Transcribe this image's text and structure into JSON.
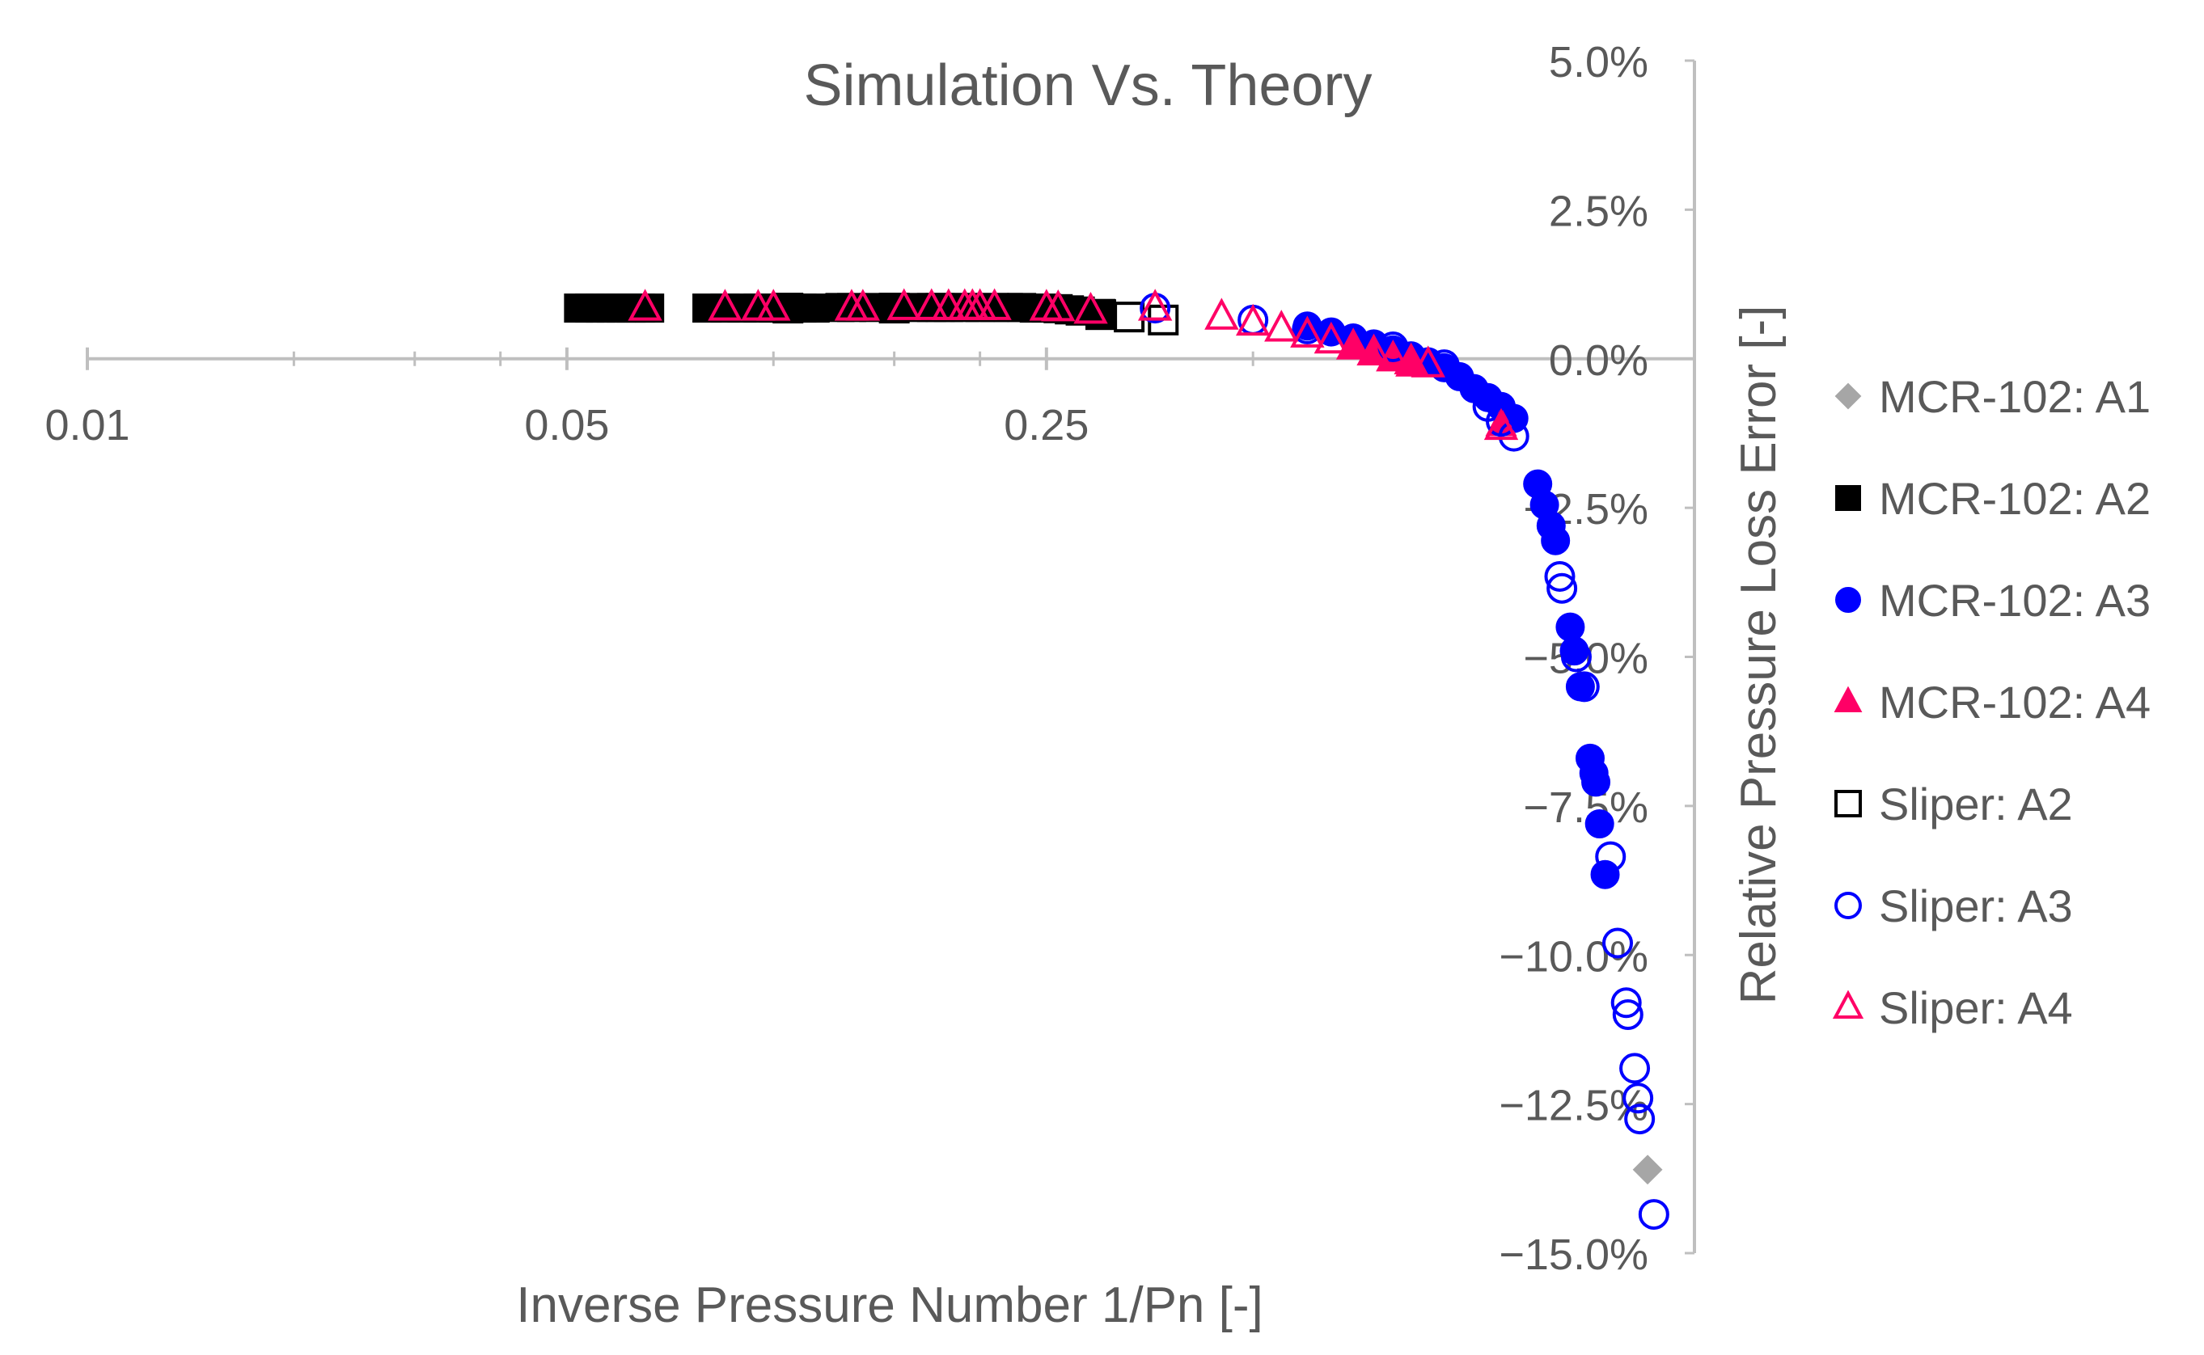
{
  "chart_data": {
    "type": "scatter",
    "title": "Simulation Vs. Theory",
    "xlabel": "Inverse Pressure Number 1/Pn [-]",
    "ylabel": "Relative Pressure Loss Error [-]",
    "xscale": "log",
    "xlim": [
      0.01,
      2.2
    ],
    "ylim": [
      -15.0,
      5.0
    ],
    "x_tick_labels": [
      {
        "value": 0.01,
        "label": "0.01"
      },
      {
        "value": 0.05,
        "label": "0.05"
      },
      {
        "value": 0.25,
        "label": "0.25"
      }
    ],
    "x_minor_ticks": [
      0.02,
      0.03,
      0.04,
      0.1,
      0.15,
      0.2,
      0.5
    ],
    "y_ticks": [
      {
        "value": 5.0,
        "label": "5.0%"
      },
      {
        "value": 2.5,
        "label": "2.5%"
      },
      {
        "value": 0.0,
        "label": "0.0%"
      },
      {
        "value": -2.5,
        "label": "−2.5%"
      },
      {
        "value": -5.0,
        "label": "−5.0%"
      },
      {
        "value": -7.5,
        "label": "−7.5%"
      },
      {
        "value": -10.0,
        "label": "−10.0%"
      },
      {
        "value": -12.5,
        "label": "−12.5%"
      },
      {
        "value": -15.0,
        "label": "−15.0%"
      }
    ],
    "y_axis_position": "right (x = 2.2)",
    "grid": false,
    "legend_position": "right",
    "series": [
      {
        "name": "MCR-102: A1",
        "marker": "diamond-filled",
        "color": "#a6a6a6",
        "points": [
          [
            1.88,
            -13.6
          ]
        ]
      },
      {
        "name": "MCR-102: A2",
        "marker": "square-filled",
        "color": "#000000",
        "points": [
          [
            0.052,
            0.85
          ],
          [
            0.054,
            0.85
          ],
          [
            0.056,
            0.85
          ],
          [
            0.058,
            0.85
          ],
          [
            0.06,
            0.85
          ],
          [
            0.062,
            0.85
          ],
          [
            0.064,
            0.85
          ],
          [
            0.066,
            0.85
          ],
          [
            0.08,
            0.85
          ],
          [
            0.085,
            0.85
          ],
          [
            0.09,
            0.85
          ],
          [
            0.095,
            0.85
          ],
          [
            0.1,
            0.85
          ],
          [
            0.105,
            0.85
          ],
          [
            0.11,
            0.85
          ],
          [
            0.115,
            0.85
          ],
          [
            0.125,
            0.86
          ],
          [
            0.13,
            0.86
          ],
          [
            0.14,
            0.86
          ],
          [
            0.15,
            0.86
          ],
          [
            0.16,
            0.86
          ],
          [
            0.17,
            0.86
          ],
          [
            0.175,
            0.86
          ],
          [
            0.18,
            0.86
          ],
          [
            0.19,
            0.86
          ],
          [
            0.2,
            0.86
          ],
          [
            0.21,
            0.86
          ],
          [
            0.22,
            0.86
          ],
          [
            0.23,
            0.86
          ],
          [
            0.24,
            0.85
          ],
          [
            0.25,
            0.85
          ],
          [
            0.26,
            0.84
          ],
          [
            0.27,
            0.82
          ],
          [
            0.28,
            0.8
          ],
          [
            0.3,
            0.76
          ]
        ]
      },
      {
        "name": "MCR-102: A3",
        "marker": "circle-filled",
        "color": "#0000ff",
        "points": [
          [
            0.6,
            0.55
          ],
          [
            0.65,
            0.45
          ],
          [
            0.7,
            0.35
          ],
          [
            0.75,
            0.25
          ],
          [
            0.8,
            0.15
          ],
          [
            0.85,
            0.05
          ],
          [
            0.9,
            -0.05
          ],
          [
            0.95,
            -0.15
          ],
          [
            1.0,
            -0.3
          ],
          [
            1.05,
            -0.5
          ],
          [
            1.1,
            -0.65
          ],
          [
            1.15,
            -0.8
          ],
          [
            1.2,
            -1.0
          ],
          [
            1.3,
            -2.1
          ],
          [
            1.33,
            -2.45
          ],
          [
            1.36,
            -2.8
          ],
          [
            1.38,
            -3.05
          ],
          [
            1.45,
            -4.5
          ],
          [
            1.47,
            -4.9
          ],
          [
            1.5,
            -5.5
          ],
          [
            1.55,
            -6.7
          ],
          [
            1.57,
            -6.95
          ],
          [
            1.58,
            -7.1
          ],
          [
            1.6,
            -7.8
          ],
          [
            1.63,
            -8.65
          ]
        ]
      },
      {
        "name": "MCR-102: A4",
        "marker": "triangle-filled",
        "color": "#ff0066",
        "points": [
          [
            0.7,
            0.2
          ],
          [
            0.75,
            0.1
          ],
          [
            0.8,
            0.0
          ],
          [
            0.85,
            -0.1
          ],
          [
            1.15,
            -1.1
          ]
        ]
      },
      {
        "name": "Sliper: A2",
        "marker": "square-open",
        "color": "#000000",
        "points": [
          [
            0.105,
            0.85
          ],
          [
            0.15,
            0.85
          ],
          [
            0.3,
            0.74
          ],
          [
            0.33,
            0.7
          ],
          [
            0.37,
            0.65
          ]
        ]
      },
      {
        "name": "Sliper: A3",
        "marker": "circle-open",
        "color": "#0000ff",
        "points": [
          [
            0.36,
            0.85
          ],
          [
            0.5,
            0.65
          ],
          [
            0.6,
            0.5
          ],
          [
            0.8,
            0.2
          ],
          [
            0.95,
            -0.1
          ],
          [
            1.1,
            -0.8
          ],
          [
            1.15,
            -1.05
          ],
          [
            1.2,
            -1.3
          ],
          [
            1.4,
            -3.65
          ],
          [
            1.41,
            -3.85
          ],
          [
            1.48,
            -5.0
          ],
          [
            1.52,
            -5.5
          ],
          [
            1.66,
            -8.35
          ],
          [
            1.7,
            -9.8
          ],
          [
            1.75,
            -10.8
          ],
          [
            1.76,
            -11.0
          ],
          [
            1.8,
            -11.9
          ],
          [
            1.82,
            -12.4
          ],
          [
            1.83,
            -12.75
          ],
          [
            1.92,
            -14.35
          ]
        ]
      },
      {
        "name": "Sliper: A4",
        "marker": "triangle-open",
        "color": "#ff0066",
        "points": [
          [
            0.065,
            0.85
          ],
          [
            0.085,
            0.85
          ],
          [
            0.095,
            0.85
          ],
          [
            0.1,
            0.85
          ],
          [
            0.13,
            0.85
          ],
          [
            0.135,
            0.85
          ],
          [
            0.155,
            0.86
          ],
          [
            0.17,
            0.86
          ],
          [
            0.18,
            0.86
          ],
          [
            0.19,
            0.86
          ],
          [
            0.195,
            0.86
          ],
          [
            0.2,
            0.86
          ],
          [
            0.21,
            0.86
          ],
          [
            0.25,
            0.85
          ],
          [
            0.26,
            0.84
          ],
          [
            0.29,
            0.8
          ],
          [
            0.36,
            0.85
          ],
          [
            0.45,
            0.7
          ],
          [
            0.5,
            0.6
          ],
          [
            0.55,
            0.5
          ],
          [
            0.6,
            0.4
          ],
          [
            0.65,
            0.3
          ],
          [
            0.7,
            0.2
          ],
          [
            0.75,
            0.1
          ],
          [
            0.8,
            0.0
          ],
          [
            0.85,
            -0.05
          ],
          [
            0.9,
            -0.1
          ],
          [
            1.15,
            -1.15
          ]
        ]
      }
    ]
  }
}
